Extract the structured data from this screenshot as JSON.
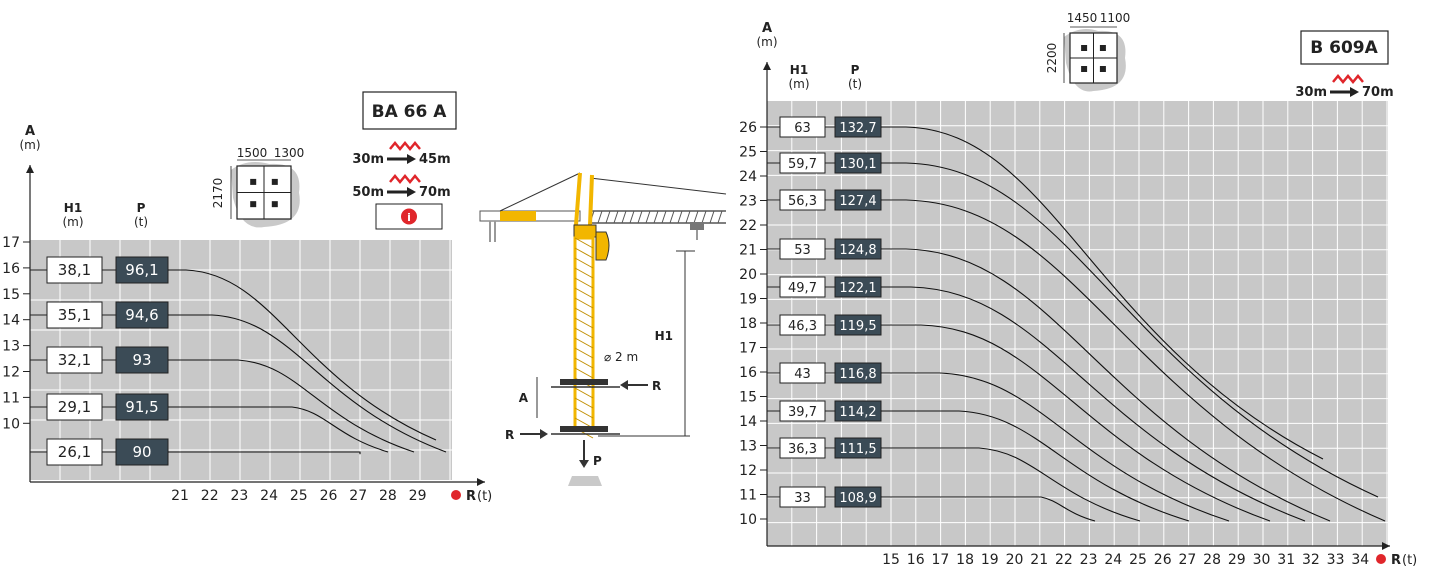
{
  "colors": {
    "grid_bg": "#c8c8c8",
    "grid_line": "#ffffff",
    "dark_box": "#3b4b56",
    "warning_red": "#e0262b",
    "crane_yellow": "#f2b600",
    "foundation_gray": "#c9c9c9",
    "red_dot": "#e0262b"
  },
  "charts": [
    {
      "model": "BA 66 A",
      "axis_y_title": "A",
      "axis_y_unit": "(m)",
      "col_h1_title": "H1",
      "col_h1_unit": "(m)",
      "col_p_title": "P",
      "col_p_unit": "(t)",
      "x_axis_label": "R",
      "x_axis_unit": "(t)",
      "y_ticks": [
        "17",
        "16",
        "15",
        "14",
        "13",
        "12",
        "11",
        "10"
      ],
      "x_ticks": [
        "21",
        "22",
        "23",
        "24",
        "25",
        "26",
        "27",
        "28",
        "29"
      ],
      "foundation": {
        "w1": "1500",
        "w2": "1300",
        "h": "2170"
      },
      "jib_changes": [
        {
          "from": "30m",
          "to": "45m"
        },
        {
          "from": "50m",
          "to": "70m"
        }
      ],
      "info_icon": "info-icon",
      "rows": [
        {
          "h1": "38,1",
          "p": "96,1"
        },
        {
          "h1": "35,1",
          "p": "94,6"
        },
        {
          "h1": "32,1",
          "p": "93"
        },
        {
          "h1": "29,1",
          "p": "91,5"
        },
        {
          "h1": "26,1",
          "p": "90"
        }
      ]
    },
    {
      "model": "B 609A",
      "axis_y_title": "A",
      "axis_y_unit": "(m)",
      "col_h1_title": "H1",
      "col_h1_unit": "(m)",
      "col_p_title": "P",
      "col_p_unit": "(t)",
      "x_axis_label": "R",
      "x_axis_unit": "(t)",
      "y_ticks": [
        "26",
        "25",
        "24",
        "23",
        "22",
        "21",
        "20",
        "19",
        "18",
        "17",
        "16",
        "15",
        "14",
        "13",
        "12",
        "11",
        "10"
      ],
      "x_ticks": [
        "15",
        "16",
        "17",
        "18",
        "19",
        "20",
        "21",
        "22",
        "23",
        "24",
        "25",
        "26",
        "27",
        "28",
        "29",
        "30",
        "31",
        "32",
        "33",
        "34"
      ],
      "foundation": {
        "w1": "1450",
        "w2": "1100",
        "h": "2200"
      },
      "jib_changes": [
        {
          "from": "30m",
          "to": "70m"
        }
      ],
      "rows": [
        {
          "h1": "63",
          "p": "132,7"
        },
        {
          "h1": "59,7",
          "p": "130,1"
        },
        {
          "h1": "56,3",
          "p": "127,4"
        },
        {
          "h1": "53",
          "p": "124,8"
        },
        {
          "h1": "49,7",
          "p": "122,1"
        },
        {
          "h1": "46,3",
          "p": "119,5"
        },
        {
          "h1": "43",
          "p": "116,8"
        },
        {
          "h1": "39,7",
          "p": "114,2"
        },
        {
          "h1": "36,3",
          "p": "111,5"
        },
        {
          "h1": "33",
          "p": "108,9"
        }
      ]
    }
  ],
  "crane": {
    "label_h1": "H1",
    "label_a": "A",
    "label_r": "R",
    "label_p": "P",
    "label_diameter": "⌀ 2 m"
  }
}
